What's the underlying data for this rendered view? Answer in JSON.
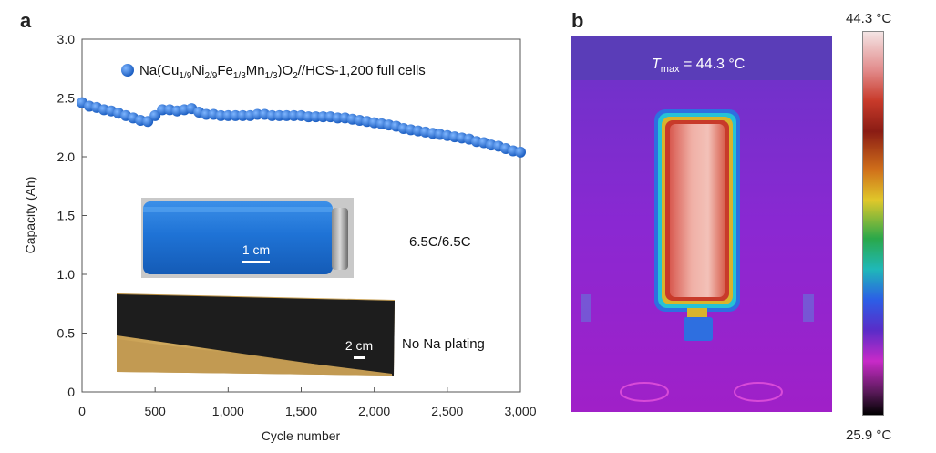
{
  "panel_a": {
    "letter": "a"
  },
  "panel_b": {
    "letter": "b"
  },
  "chart_data": {
    "type": "scatter",
    "title": "",
    "xlabel": "Cycle number",
    "ylabel": "Capacity (Ah)",
    "xlim": [
      0,
      3000
    ],
    "ylim": [
      0,
      3.0
    ],
    "xticks": [
      "0",
      "500",
      "1,000",
      "1,500",
      "2,000",
      "2,500",
      "3,000"
    ],
    "yticks": [
      "0",
      "0.5",
      "1.0",
      "1.5",
      "2.0",
      "2.5",
      "3.0"
    ],
    "series": [
      {
        "name": "Na(Cu1/9Ni2/9Fe1/3Mn1/3)O2//HCS-1,200 full cells",
        "color": "#2f78d6",
        "x": [
          0,
          50,
          100,
          150,
          200,
          250,
          300,
          350,
          400,
          450,
          500,
          550,
          600,
          650,
          700,
          750,
          800,
          850,
          900,
          950,
          1000,
          1050,
          1100,
          1150,
          1200,
          1250,
          1300,
          1350,
          1400,
          1450,
          1500,
          1550,
          1600,
          1650,
          1700,
          1750,
          1800,
          1850,
          1900,
          1950,
          2000,
          2050,
          2100,
          2150,
          2200,
          2250,
          2300,
          2350,
          2400,
          2450,
          2500,
          2550,
          2600,
          2650,
          2700,
          2750,
          2800,
          2850,
          2900,
          2950,
          3000
        ],
        "y": [
          2.46,
          2.43,
          2.42,
          2.4,
          2.39,
          2.37,
          2.35,
          2.33,
          2.31,
          2.3,
          2.35,
          2.4,
          2.4,
          2.39,
          2.4,
          2.41,
          2.38,
          2.36,
          2.36,
          2.35,
          2.35,
          2.35,
          2.35,
          2.35,
          2.36,
          2.36,
          2.35,
          2.35,
          2.35,
          2.35,
          2.35,
          2.34,
          2.34,
          2.34,
          2.34,
          2.33,
          2.33,
          2.32,
          2.31,
          2.3,
          2.29,
          2.28,
          2.27,
          2.26,
          2.24,
          2.23,
          2.22,
          2.21,
          2.2,
          2.19,
          2.18,
          2.17,
          2.16,
          2.15,
          2.13,
          2.12,
          2.1,
          2.09,
          2.07,
          2.05,
          2.04
        ]
      }
    ],
    "legend": {
      "label_parts": [
        {
          "t": "Na(Cu",
          "sub": false
        },
        {
          "t": "1/9",
          "sub": true
        },
        {
          "t": "Ni",
          "sub": false
        },
        {
          "t": "2/9",
          "sub": true
        },
        {
          "t": "Fe",
          "sub": false
        },
        {
          "t": "1/3",
          "sub": true
        },
        {
          "t": "Mn",
          "sub": false
        },
        {
          "t": "1/3",
          "sub": true
        },
        {
          "t": ")O",
          "sub": false
        },
        {
          "t": "2",
          "sub": true
        },
        {
          "t": "//HCS-1,200 full cells",
          "sub": false
        }
      ],
      "position": "top"
    },
    "annotations": {
      "rate": "6.5C/6.5C",
      "no_plating": "No Na plating",
      "scale_cell": "1 cm",
      "scale_electrode": "2 cm"
    }
  },
  "thermal": {
    "tmax_symbol": "T",
    "tmax_sub": "max",
    "tmax_value": " = 44.3 °C",
    "colorbar_max": "44.3 °C",
    "colorbar_min": "25.9 °C"
  }
}
